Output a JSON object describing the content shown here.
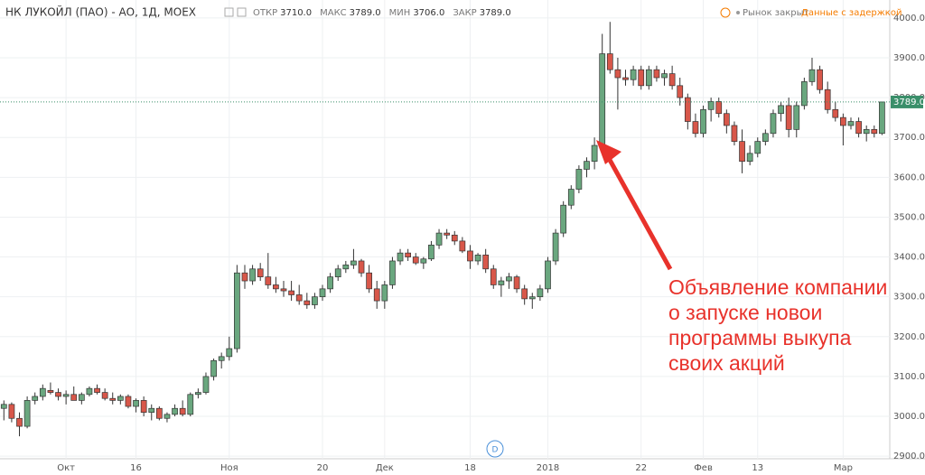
{
  "header": {
    "title": "НК ЛУКОЙЛ (ПАО) - АО, 1Д, MOEX",
    "stats": [
      {
        "label": "ОТКР",
        "value": "3710.0"
      },
      {
        "label": "МАКС",
        "value": "3789.0"
      },
      {
        "label": "МИН",
        "value": "3706.0"
      },
      {
        "label": "ЗАКР",
        "value": "3789.0"
      }
    ],
    "status": "Рынок закрыт",
    "delay": "Данные с задержкой"
  },
  "chart_data": {
    "type": "candlestick",
    "up_color": "#6aa77f",
    "down_color": "#d8574a",
    "ylim": [
      2880,
      4020
    ],
    "yticks": [
      {
        "value": 2900,
        "label": "2900.0"
      },
      {
        "value": 3000,
        "label": "3000.0"
      },
      {
        "value": 3100,
        "label": "3100.0"
      },
      {
        "value": 3200,
        "label": "3200.0"
      },
      {
        "value": 3300,
        "label": "3300.0"
      },
      {
        "value": 3400,
        "label": "3400.0"
      },
      {
        "value": 3500,
        "label": "3500.0"
      },
      {
        "value": 3600,
        "label": "3600.0"
      },
      {
        "value": 3700,
        "label": "3700.0"
      },
      {
        "value": 3800,
        "label": "3800.0"
      },
      {
        "value": 3900,
        "label": "3900.0"
      },
      {
        "value": 4000,
        "label": "4000.0"
      }
    ],
    "xlim": [
      -0.5,
      114
    ],
    "xticks": [
      {
        "value": 8,
        "label": "Окт"
      },
      {
        "value": 17,
        "label": "16"
      },
      {
        "value": 29,
        "label": "Ноя"
      },
      {
        "value": 41,
        "label": "20"
      },
      {
        "value": 49,
        "label": "Дек"
      },
      {
        "value": 60,
        "label": "18"
      },
      {
        "value": 70,
        "label": "2018"
      },
      {
        "value": 82,
        "label": "22"
      },
      {
        "value": 90,
        "label": "Фев"
      },
      {
        "value": 97,
        "label": "13"
      },
      {
        "value": 108,
        "label": "Мар"
      }
    ],
    "grid": true,
    "last_price": {
      "value": 3789,
      "label": "3789.0"
    },
    "annotation": [
      "Объявление компании",
      "о запуске новои",
      "программы выкупа",
      "своих акций"
    ],
    "marker": "D",
    "ohlc": [
      [
        3020,
        3040,
        2990,
        3030
      ],
      [
        3030,
        3035,
        2985,
        2995
      ],
      [
        2995,
        3010,
        2950,
        2975
      ],
      [
        2975,
        3050,
        2970,
        3040
      ],
      [
        3040,
        3060,
        3030,
        3050
      ],
      [
        3050,
        3080,
        3040,
        3070
      ],
      [
        3065,
        3085,
        3055,
        3060
      ],
      [
        3060,
        3070,
        3040,
        3050
      ],
      [
        3050,
        3065,
        3030,
        3055
      ],
      [
        3055,
        3075,
        3045,
        3040
      ],
      [
        3040,
        3060,
        3030,
        3055
      ],
      [
        3055,
        3075,
        3050,
        3070
      ],
      [
        3070,
        3080,
        3055,
        3060
      ],
      [
        3060,
        3070,
        3040,
        3045
      ],
      [
        3045,
        3060,
        3030,
        3040
      ],
      [
        3040,
        3055,
        3030,
        3050
      ],
      [
        3050,
        3055,
        3020,
        3025
      ],
      [
        3025,
        3045,
        3010,
        3040
      ],
      [
        3040,
        3050,
        3000,
        3010
      ],
      [
        3010,
        3030,
        2990,
        3020
      ],
      [
        3020,
        3025,
        2990,
        2995
      ],
      [
        2995,
        3010,
        2985,
        3005
      ],
      [
        3005,
        3030,
        3000,
        3020
      ],
      [
        3020,
        3040,
        3000,
        3005
      ],
      [
        3005,
        3060,
        3000,
        3055
      ],
      [
        3055,
        3070,
        3045,
        3060
      ],
      [
        3060,
        3110,
        3055,
        3100
      ],
      [
        3100,
        3145,
        3090,
        3140
      ],
      [
        3140,
        3160,
        3120,
        3150
      ],
      [
        3150,
        3200,
        3140,
        3170
      ],
      [
        3170,
        3380,
        3160,
        3360
      ],
      [
        3360,
        3380,
        3320,
        3340
      ],
      [
        3340,
        3380,
        3330,
        3370
      ],
      [
        3370,
        3385,
        3340,
        3350
      ],
      [
        3350,
        3410,
        3320,
        3330
      ],
      [
        3330,
        3350,
        3310,
        3320
      ],
      [
        3320,
        3340,
        3300,
        3315
      ],
      [
        3315,
        3340,
        3290,
        3305
      ],
      [
        3305,
        3330,
        3280,
        3290
      ],
      [
        3290,
        3310,
        3270,
        3280
      ],
      [
        3280,
        3310,
        3270,
        3300
      ],
      [
        3300,
        3330,
        3290,
        3320
      ],
      [
        3320,
        3360,
        3310,
        3350
      ],
      [
        3350,
        3380,
        3340,
        3370
      ],
      [
        3370,
        3390,
        3360,
        3380
      ],
      [
        3380,
        3420,
        3370,
        3390
      ],
      [
        3390,
        3395,
        3350,
        3360
      ],
      [
        3360,
        3380,
        3310,
        3320
      ],
      [
        3320,
        3340,
        3270,
        3290
      ],
      [
        3290,
        3340,
        3270,
        3330
      ],
      [
        3330,
        3400,
        3320,
        3390
      ],
      [
        3390,
        3420,
        3380,
        3410
      ],
      [
        3410,
        3420,
        3390,
        3400
      ],
      [
        3400,
        3410,
        3380,
        3385
      ],
      [
        3385,
        3400,
        3370,
        3395
      ],
      [
        3395,
        3440,
        3390,
        3430
      ],
      [
        3430,
        3470,
        3420,
        3460
      ],
      [
        3460,
        3470,
        3445,
        3455
      ],
      [
        3455,
        3465,
        3430,
        3440
      ],
      [
        3440,
        3450,
        3410,
        3415
      ],
      [
        3415,
        3430,
        3370,
        3390
      ],
      [
        3390,
        3410,
        3380,
        3405
      ],
      [
        3405,
        3420,
        3360,
        3370
      ],
      [
        3370,
        3380,
        3320,
        3330
      ],
      [
        3330,
        3350,
        3300,
        3340
      ],
      [
        3340,
        3360,
        3320,
        3350
      ],
      [
        3350,
        3355,
        3310,
        3320
      ],
      [
        3320,
        3330,
        3280,
        3295
      ],
      [
        3295,
        3310,
        3270,
        3300
      ],
      [
        3300,
        3330,
        3290,
        3320
      ],
      [
        3320,
        3400,
        3310,
        3390
      ],
      [
        3390,
        3470,
        3380,
        3460
      ],
      [
        3460,
        3540,
        3450,
        3530
      ],
      [
        3530,
        3580,
        3520,
        3570
      ],
      [
        3570,
        3630,
        3560,
        3620
      ],
      [
        3620,
        3650,
        3600,
        3640
      ],
      [
        3640,
        3700,
        3620,
        3680
      ],
      [
        3680,
        3960,
        3670,
        3910
      ],
      [
        3910,
        3990,
        3860,
        3870
      ],
      [
        3870,
        3900,
        3770,
        3850
      ],
      [
        3850,
        3870,
        3830,
        3845
      ],
      [
        3845,
        3880,
        3830,
        3870
      ],
      [
        3870,
        3880,
        3820,
        3830
      ],
      [
        3830,
        3880,
        3820,
        3870
      ],
      [
        3870,
        3880,
        3840,
        3850
      ],
      [
        3850,
        3870,
        3830,
        3860
      ],
      [
        3860,
        3880,
        3820,
        3830
      ],
      [
        3830,
        3850,
        3780,
        3800
      ],
      [
        3800,
        3810,
        3720,
        3740
      ],
      [
        3740,
        3760,
        3700,
        3710
      ],
      [
        3710,
        3780,
        3700,
        3770
      ],
      [
        3770,
        3800,
        3740,
        3790
      ],
      [
        3790,
        3800,
        3750,
        3760
      ],
      [
        3760,
        3770,
        3710,
        3730
      ],
      [
        3730,
        3740,
        3680,
        3690
      ],
      [
        3690,
        3720,
        3610,
        3640
      ],
      [
        3640,
        3680,
        3630,
        3660
      ],
      [
        3660,
        3700,
        3650,
        3690
      ],
      [
        3690,
        3720,
        3680,
        3710
      ],
      [
        3710,
        3770,
        3700,
        3760
      ],
      [
        3760,
        3790,
        3740,
        3780
      ],
      [
        3780,
        3800,
        3700,
        3720
      ],
      [
        3720,
        3790,
        3700,
        3780
      ],
      [
        3780,
        3850,
        3770,
        3840
      ],
      [
        3840,
        3900,
        3830,
        3870
      ],
      [
        3870,
        3880,
        3810,
        3820
      ],
      [
        3820,
        3840,
        3760,
        3770
      ],
      [
        3770,
        3790,
        3740,
        3750
      ],
      [
        3750,
        3760,
        3680,
        3730
      ],
      [
        3730,
        3750,
        3720,
        3740
      ],
      [
        3740,
        3750,
        3700,
        3710
      ],
      [
        3710,
        3730,
        3690,
        3720
      ],
      [
        3720,
        3730,
        3700,
        3710
      ],
      [
        3710,
        3789,
        3706,
        3789
      ]
    ]
  }
}
